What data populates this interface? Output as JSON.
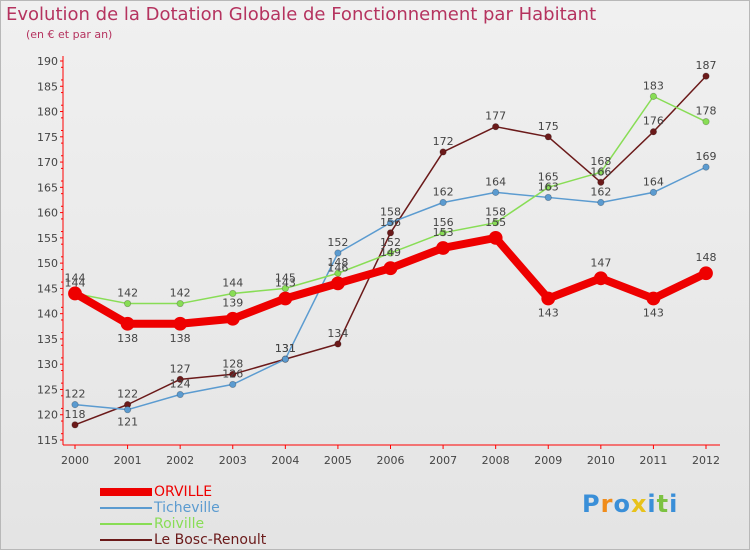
{
  "header": {
    "title": "Evolution de la Dotation Globale de Fonctionnement par Habitant",
    "subtitle": "(en € et par an)"
  },
  "chart_data": {
    "type": "line",
    "title": "Evolution de la Dotation Globale de Fonctionnement par Habitant",
    "subtitle": "(en € et par an)",
    "xlabel": "",
    "ylabel": "",
    "ylim": [
      115,
      190
    ],
    "yticks": [
      115,
      120,
      125,
      130,
      135,
      140,
      145,
      150,
      155,
      160,
      165,
      170,
      175,
      180,
      185,
      190
    ],
    "categories": [
      "2000",
      "2001",
      "2002",
      "2003",
      "2004",
      "2005",
      "2006",
      "2007",
      "2008",
      "2009",
      "2010",
      "2011",
      "2012"
    ],
    "grid": false,
    "legend": "bottom-left",
    "series": [
      {
        "name": "ORVILLE",
        "color": "#ee0000",
        "values": [
          144,
          138,
          138,
          139,
          143,
          146,
          149,
          153,
          155,
          143,
          147,
          143,
          148
        ]
      },
      {
        "name": "Ticheville",
        "color": "#5b9bd0",
        "values": [
          122,
          121,
          124,
          126,
          131,
          152,
          158,
          162,
          164,
          163,
          162,
          164,
          169
        ]
      },
      {
        "name": "Roiville",
        "color": "#88dd55",
        "values": [
          144,
          142,
          142,
          144,
          145,
          148,
          152,
          156,
          158,
          165,
          168,
          183,
          178
        ]
      },
      {
        "name": "Le Bosc-Renoult",
        "color": "#6b1a1a",
        "values": [
          118,
          122,
          127,
          128,
          131,
          134,
          156,
          172,
          177,
          175,
          166,
          176,
          187
        ]
      }
    ]
  },
  "logo": {
    "letters": [
      "P",
      "r",
      "o",
      "x",
      "i",
      "t",
      "i"
    ],
    "colors": [
      "#3a8fd8",
      "#f08c1a",
      "#3a8fd8",
      "#e8c21a",
      "#3a8fd8",
      "#7cc242",
      "#3a8fd8"
    ]
  }
}
